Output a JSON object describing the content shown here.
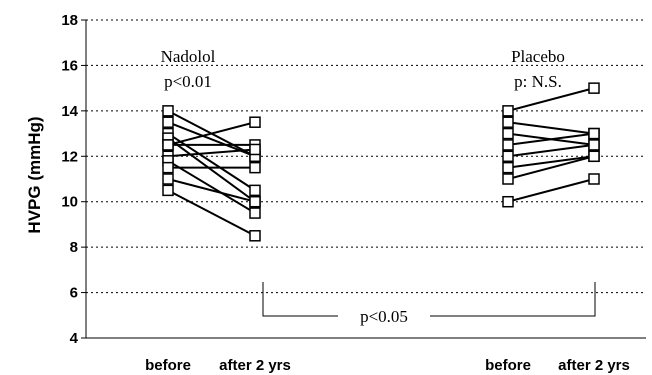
{
  "chart_data": {
    "type": "line",
    "ylabel": "HVPG (mmHg)",
    "ylim": [
      4,
      18
    ],
    "yticks": [
      "4",
      "6",
      "8",
      "10",
      "12",
      "14",
      "16",
      "18"
    ],
    "grid": "horizontal dashed",
    "categories": [
      "before",
      "after 2 yrs",
      "before",
      "after 2 yrs"
    ],
    "groups": [
      {
        "name": "Nadolol",
        "pvalue": "p<0.01",
        "pairs": [
          [
            14.0,
            12.0
          ],
          [
            13.5,
            12.0
          ],
          [
            13.0,
            10.5
          ],
          [
            12.8,
            10.0
          ],
          [
            12.5,
            13.5
          ],
          [
            12.5,
            12.5
          ],
          [
            12.0,
            12.3
          ],
          [
            11.8,
            9.5
          ],
          [
            11.5,
            11.5
          ],
          [
            11.0,
            10.0
          ],
          [
            10.5,
            8.5
          ]
        ]
      },
      {
        "name": "Placebo",
        "pvalue": "p: N.S.",
        "pairs": [
          [
            14.0,
            15.0
          ],
          [
            13.5,
            13.0
          ],
          [
            13.0,
            12.5
          ],
          [
            12.5,
            13.0
          ],
          [
            12.0,
            12.5
          ],
          [
            11.5,
            12.0
          ],
          [
            11.0,
            12.0
          ],
          [
            10.0,
            11.0
          ]
        ]
      }
    ],
    "comparison": "p<0.05",
    "colors": {
      "line": "#000000",
      "marker_fill": "#ffffff",
      "grid": "#000000"
    }
  }
}
